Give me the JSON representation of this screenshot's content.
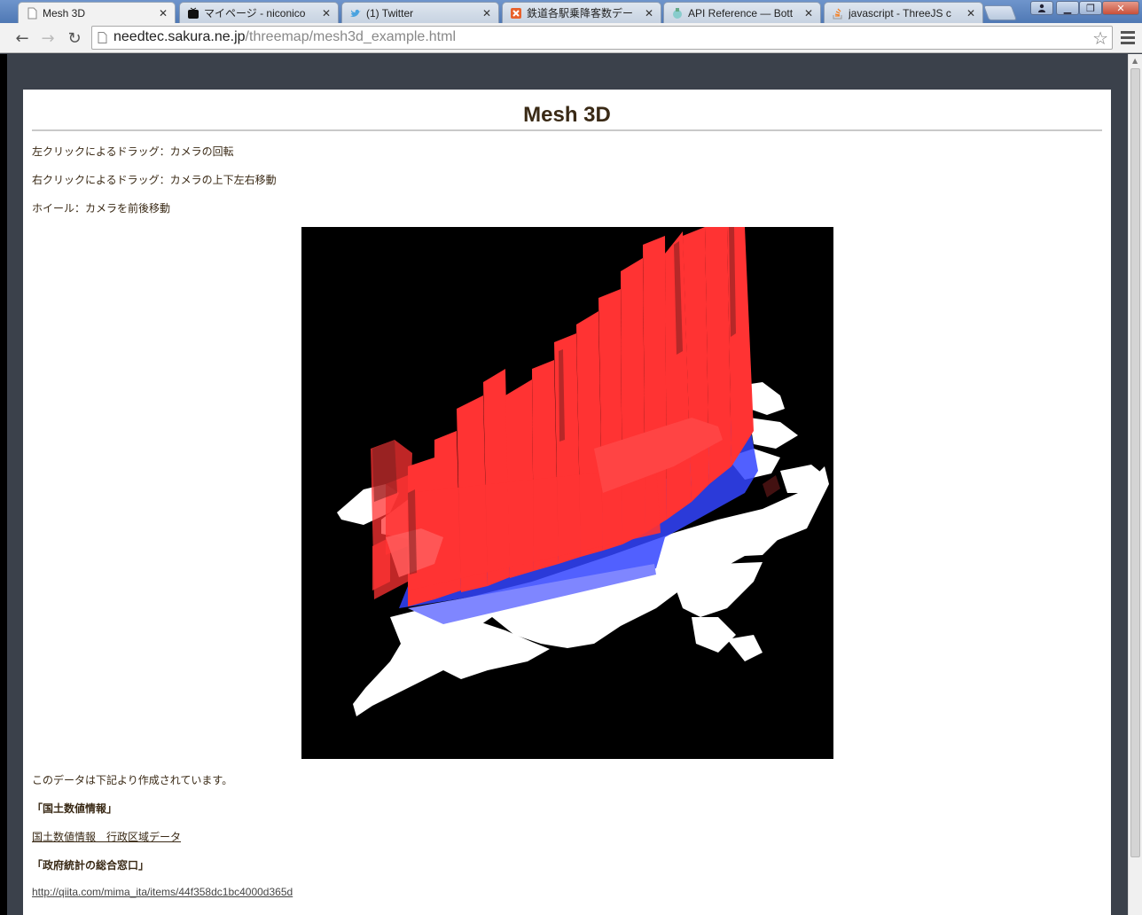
{
  "tabs": [
    {
      "title": "Mesh 3D",
      "icon": "page-icon",
      "active": true
    },
    {
      "title": "マイページ - niconico",
      "icon": "niconico-icon"
    },
    {
      "title": "(1) Twitter",
      "icon": "twitter-icon"
    },
    {
      "title": "鉄道各駅乗降客数デー",
      "icon": "xml-icon"
    },
    {
      "title": "API Reference — Bott",
      "icon": "bottle-icon"
    },
    {
      "title": "javascript - ThreeJS c",
      "icon": "stackoverflow-icon"
    }
  ],
  "toolbar": {
    "url_host": "needtec.sakura.ne.jp",
    "url_path": "/threemap/mesh3d_example.html"
  },
  "page": {
    "title": "Mesh 3D",
    "instructions": [
      "左クリックによるドラッグ：カメラの回転",
      "右クリックによるドラッグ：カメラの上下左右移動",
      "ホイール：カメラを前後移動"
    ],
    "source_intro": "このデータは下記より作成されています。",
    "source1_heading": "「国土数値情報」",
    "source1_link": "国土数値情報　行政区域データ",
    "source2_heading": "「政府統計の総合窓口」",
    "source2_link": "http://qiita.com/mima_ita/items/44f358dc1bc4000d365d"
  },
  "colors": {
    "bar_red": "#ff3333",
    "bar_blue": "#3344ff",
    "map_land": "#ffffff",
    "canvas_bg": "#000000"
  }
}
